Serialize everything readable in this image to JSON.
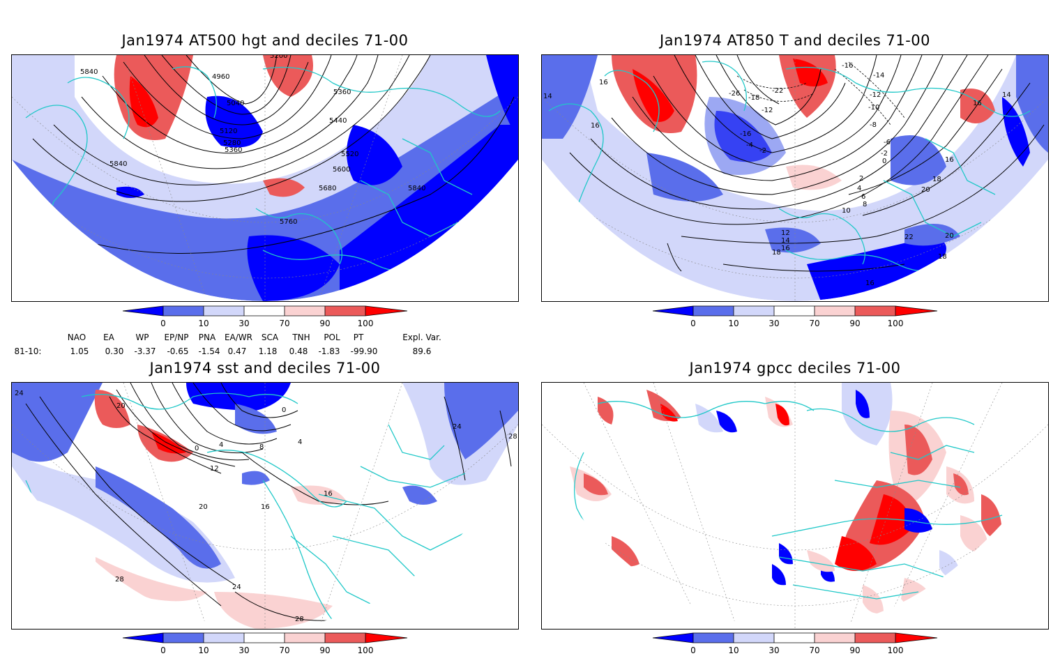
{
  "panels": [
    {
      "title": "Jan1974 AT500 hgt and deciles 71-00",
      "contour_labels": [
        "5840",
        "4960",
        "5200",
        "5360",
        "5040",
        "5120",
        "5280",
        "5360",
        "5440",
        "5840",
        "5520",
        "5600",
        "5680",
        "5840",
        "5760"
      ]
    },
    {
      "title": "Jan1974 AT850 T and deciles 71-00",
      "contour_labels": [
        "14",
        "16",
        "16",
        "-16",
        "-14",
        "-12",
        "-10",
        "-8",
        "-6",
        "-2",
        "0",
        "2",
        "4",
        "6",
        "8",
        "10",
        "16",
        "18",
        "20",
        "22",
        "20",
        "18",
        "12",
        "14",
        "16",
        "18",
        "16",
        "14",
        "16",
        "-26",
        "-18",
        "-12",
        "-22",
        "-4",
        "-2",
        "-16"
      ]
    },
    {
      "title": "Jan1974 sst and deciles 71-00",
      "contour_labels": [
        "24",
        "20",
        "0",
        "4",
        "8",
        "12",
        "16",
        "20",
        "24",
        "28",
        "28",
        "24",
        "28",
        "4",
        "0",
        "16"
      ]
    },
    {
      "title": "Jan1974 gpcc deciles 71-00",
      "contour_labels": []
    }
  ],
  "colorbar": {
    "labels": [
      "0",
      "10",
      "30",
      "70",
      "90",
      "100"
    ],
    "colors": [
      "#0000ff",
      "#5a6eeb",
      "#d2d7fa",
      "#ffffff",
      "#fad2d2",
      "#eb5a5a",
      "#ff0000"
    ]
  },
  "indices": {
    "header_names": [
      "NAO",
      "EA",
      "WP",
      "EP/NP",
      "PNA",
      "EA/WR",
      "SCA",
      "TNH",
      "POL",
      "PT",
      "Expl. Var."
    ],
    "row_label": "81-10:",
    "row_values": [
      "1.05",
      "0.30",
      "-3.37",
      "-0.65",
      "-1.54",
      "0.47",
      "1.18",
      "0.48",
      "-1.83",
      "-99.90",
      "89.6"
    ]
  },
  "map_colors": {
    "coast": "#20c8c8",
    "contour": "#000000"
  }
}
